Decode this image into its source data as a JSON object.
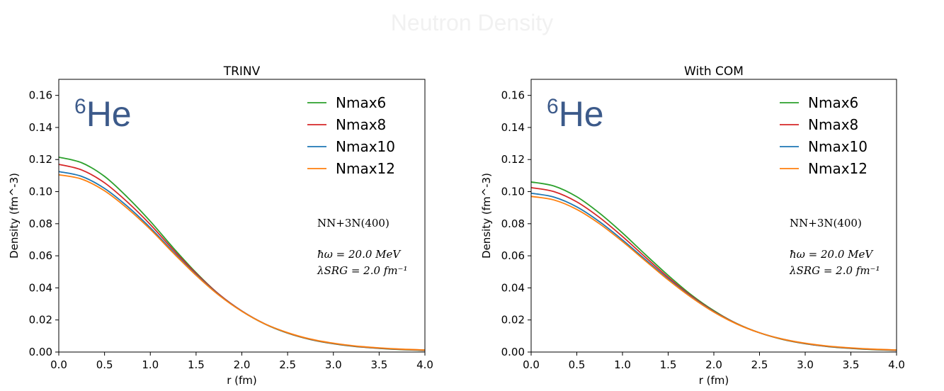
{
  "page": {
    "title": "Neutron Density"
  },
  "chart_data": [
    {
      "type": "line",
      "title": "TRINV",
      "xlabel": "r (fm)",
      "ylabel": "Density (fm^-3)",
      "xlim": [
        0,
        4.0
      ],
      "ylim": [
        0,
        0.17
      ],
      "xticks": [
        "0.0",
        "0.5",
        "1.0",
        "1.5",
        "2.0",
        "2.5",
        "3.0",
        "3.5",
        "4.0"
      ],
      "yticks": [
        "0.00",
        "0.02",
        "0.04",
        "0.06",
        "0.08",
        "0.10",
        "0.12",
        "0.14",
        "0.16"
      ],
      "grid": false,
      "legend_position": "top-right",
      "nucleus_label": {
        "mass": "6",
        "symbol": "He"
      },
      "annotation": {
        "interaction": "NN+3N(400)",
        "hw": "ħω = 20.0 MeV",
        "lambda": "λSRG = 2.0 fm⁻¹"
      },
      "x": [
        0,
        0.25,
        0.5,
        0.75,
        1.0,
        1.25,
        1.5,
        1.75,
        2.0,
        2.25,
        2.5,
        2.75,
        3.0,
        3.25,
        3.5,
        3.75,
        4.0
      ],
      "series": [
        {
          "name": "Nmax6",
          "color": "#2ca02c",
          "values": [
            0.1215,
            0.118,
            0.1095,
            0.0965,
            0.0815,
            0.065,
            0.0495,
            0.036,
            0.0255,
            0.0175,
            0.0118,
            0.0078,
            0.0052,
            0.0034,
            0.0023,
            0.0015,
            0.001
          ]
        },
        {
          "name": "Nmax8",
          "color": "#d62728",
          "values": [
            0.117,
            0.1135,
            0.1055,
            0.0935,
            0.0795,
            0.0638,
            0.049,
            0.036,
            0.0256,
            0.0176,
            0.0119,
            0.0079,
            0.0053,
            0.0035,
            0.0024,
            0.0016,
            0.0011
          ]
        },
        {
          "name": "Nmax10",
          "color": "#1f77b4",
          "values": [
            0.1125,
            0.1095,
            0.102,
            0.0908,
            0.0775,
            0.0625,
            0.0482,
            0.0356,
            0.0255,
            0.0176,
            0.012,
            0.008,
            0.0054,
            0.0036,
            0.0025,
            0.0017,
            0.0012
          ]
        },
        {
          "name": "Nmax12",
          "color": "#ff7f0e",
          "values": [
            0.1105,
            0.1078,
            0.1005,
            0.0895,
            0.0765,
            0.0618,
            0.0478,
            0.0354,
            0.0254,
            0.0176,
            0.0121,
            0.0081,
            0.0055,
            0.0037,
            0.0026,
            0.0018,
            0.0013
          ]
        }
      ]
    },
    {
      "type": "line",
      "title": "With COM",
      "xlabel": "r (fm)",
      "ylabel": "Density (fm^-3)",
      "xlim": [
        0,
        4.0
      ],
      "ylim": [
        0,
        0.17
      ],
      "xticks": [
        "0.0",
        "0.5",
        "1.0",
        "1.5",
        "2.0",
        "2.5",
        "3.0",
        "3.5",
        "4.0"
      ],
      "yticks": [
        "0.00",
        "0.02",
        "0.04",
        "0.06",
        "0.08",
        "0.10",
        "0.12",
        "0.14",
        "0.16"
      ],
      "grid": false,
      "legend_position": "top-right",
      "nucleus_label": {
        "mass": "6",
        "symbol": "He"
      },
      "annotation": {
        "interaction": "NN+3N(400)",
        "hw": "ħω = 20.0 MeV",
        "lambda": "λSRG = 2.0 fm⁻¹"
      },
      "x": [
        0,
        0.25,
        0.5,
        0.75,
        1.0,
        1.25,
        1.5,
        1.75,
        2.0,
        2.25,
        2.5,
        2.75,
        3.0,
        3.25,
        3.5,
        3.75,
        4.0
      ],
      "series": [
        {
          "name": "Nmax6",
          "color": "#2ca02c",
          "values": [
            0.106,
            0.1035,
            0.0968,
            0.0865,
            0.0742,
            0.0608,
            0.0478,
            0.0358,
            0.0258,
            0.0178,
            0.012,
            0.0079,
            0.0052,
            0.0034,
            0.0023,
            0.0015,
            0.001
          ]
        },
        {
          "name": "Nmax8",
          "color": "#d62728",
          "values": [
            0.1025,
            0.1,
            0.0936,
            0.0838,
            0.072,
            0.0592,
            0.0466,
            0.0351,
            0.0254,
            0.0177,
            0.012,
            0.008,
            0.0053,
            0.0035,
            0.0024,
            0.0016,
            0.0011
          ]
        },
        {
          "name": "Nmax10",
          "color": "#1f77b4",
          "values": [
            0.099,
            0.0966,
            0.0905,
            0.0812,
            0.0699,
            0.0577,
            0.0456,
            0.0345,
            0.0251,
            0.0176,
            0.012,
            0.0081,
            0.0054,
            0.0036,
            0.0025,
            0.0017,
            0.0012
          ]
        },
        {
          "name": "Nmax12",
          "color": "#ff7f0e",
          "values": [
            0.097,
            0.0948,
            0.0889,
            0.0799,
            0.0689,
            0.0569,
            0.045,
            0.0342,
            0.0249,
            0.0175,
            0.012,
            0.0081,
            0.0055,
            0.0037,
            0.0026,
            0.0018,
            0.0013
          ]
        }
      ]
    }
  ]
}
